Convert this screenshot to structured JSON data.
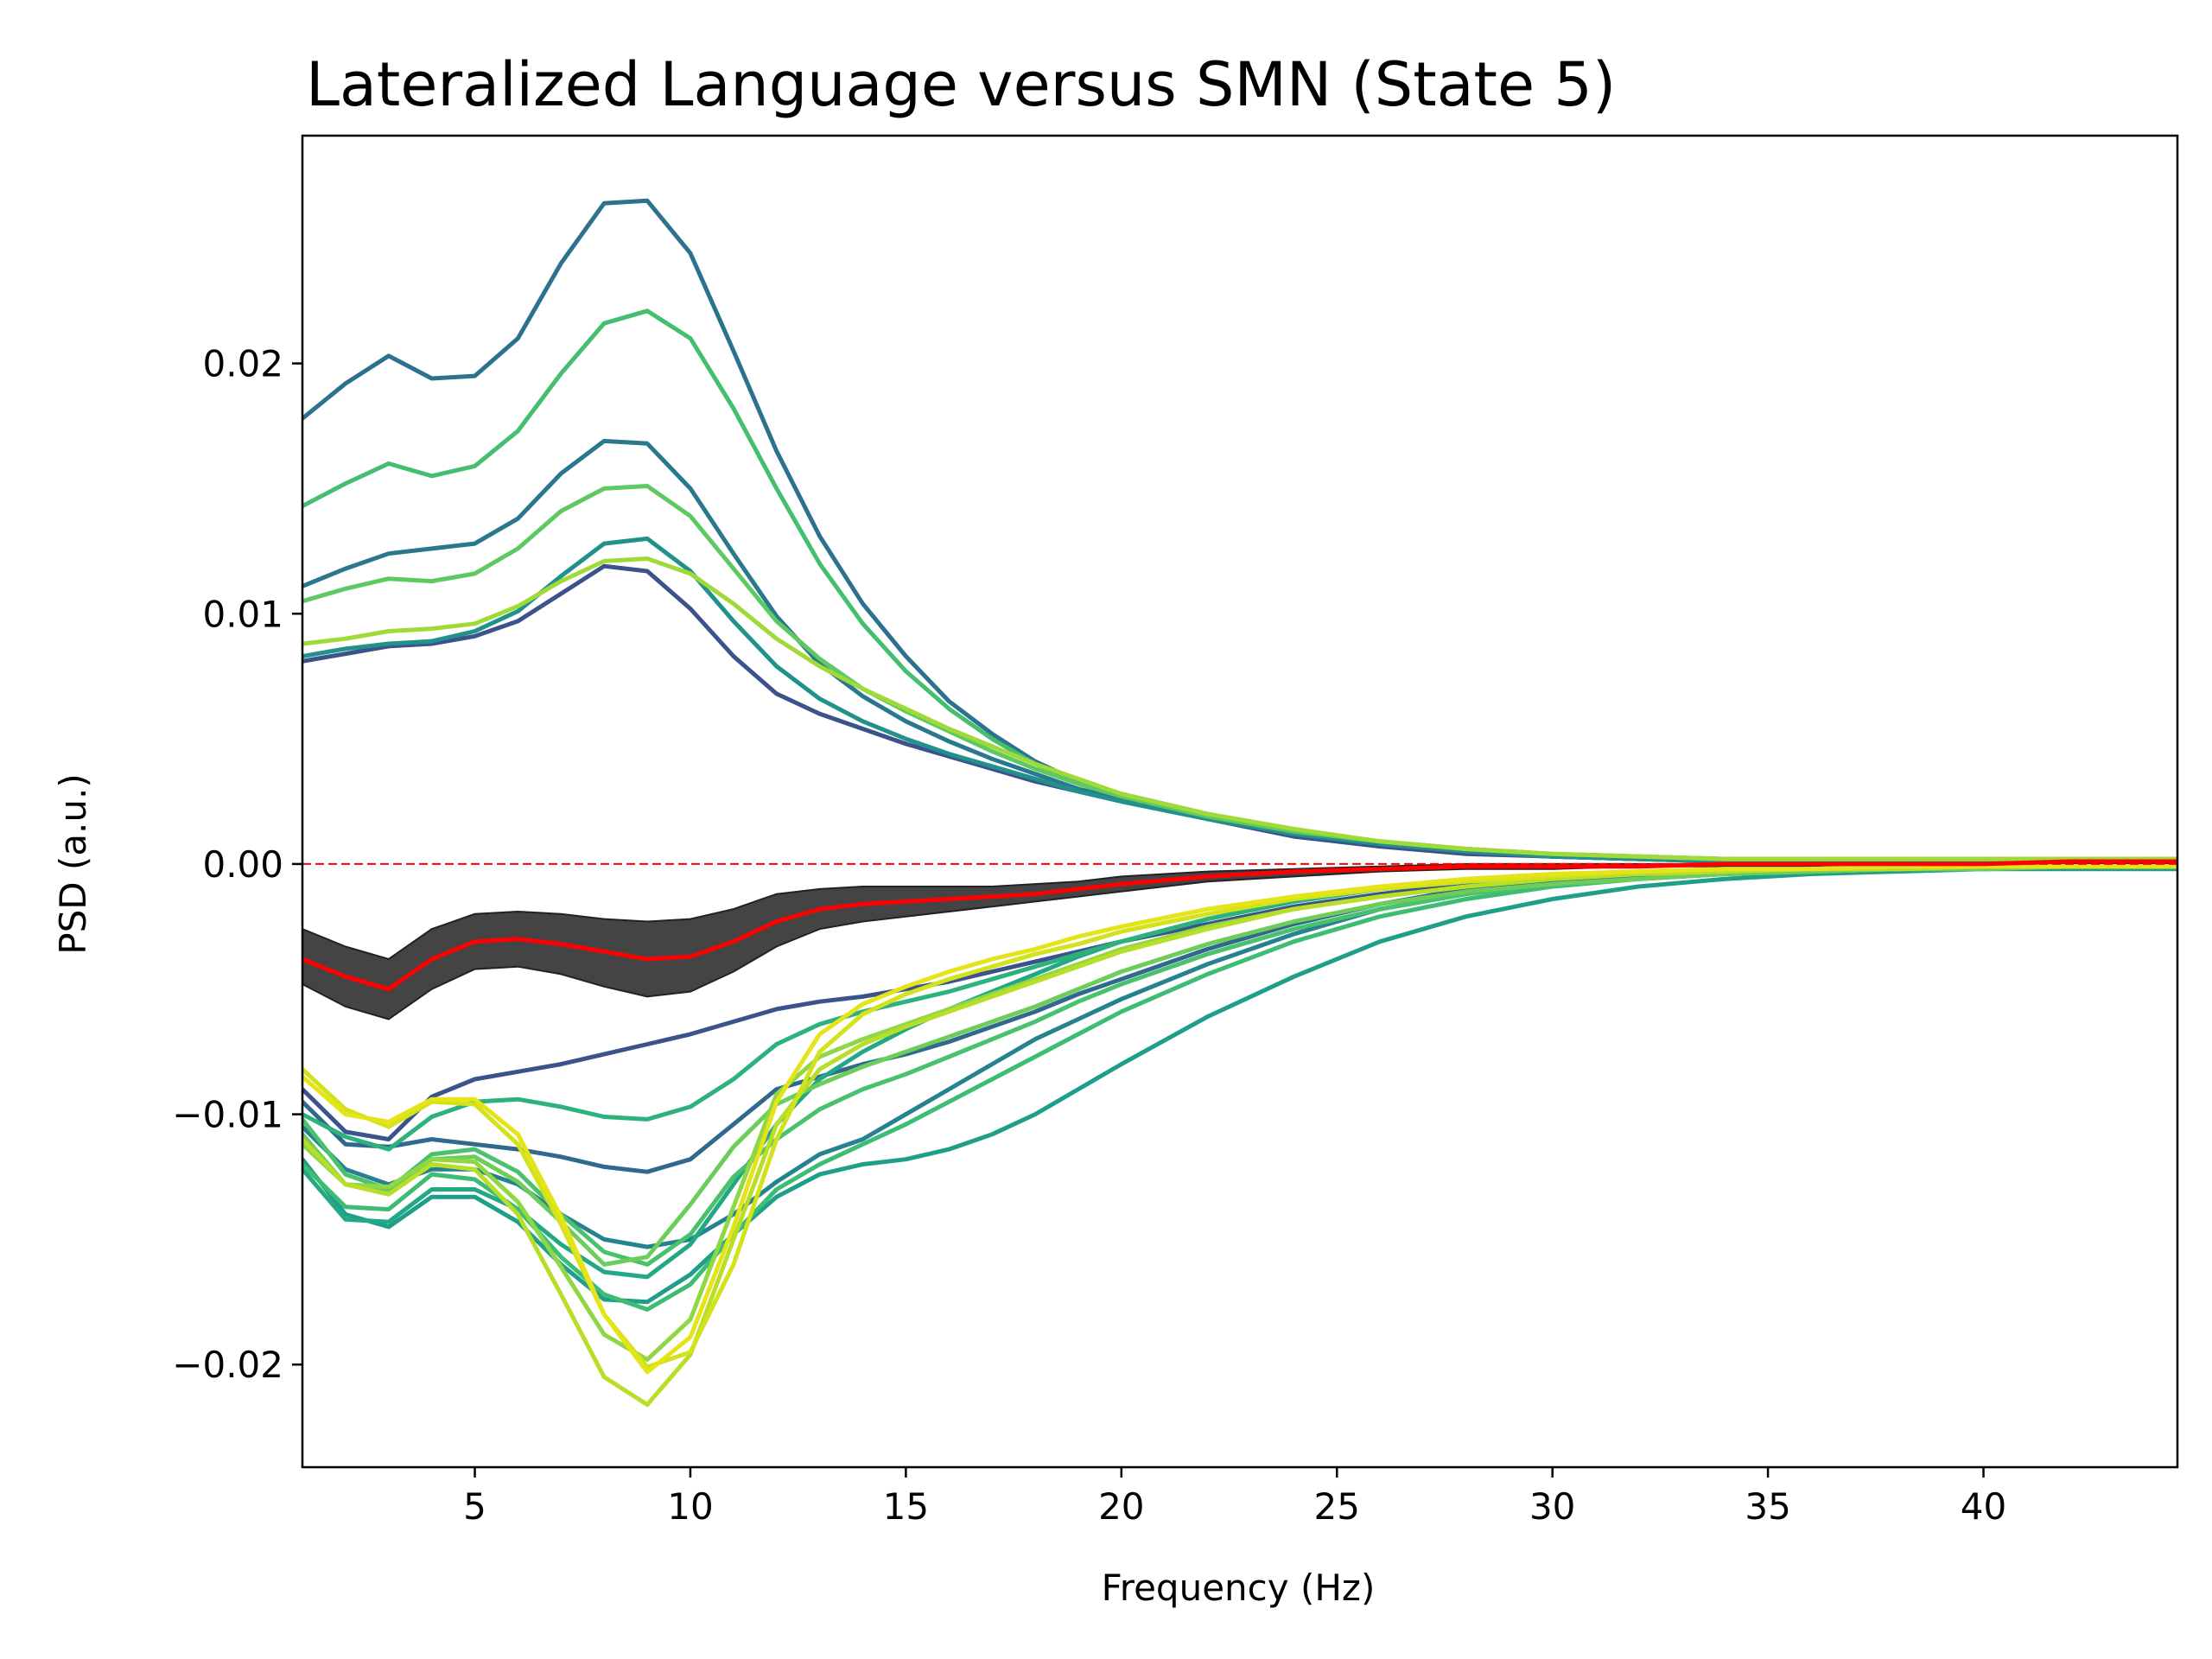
{
  "chart_data": {
    "type": "line",
    "title": "Lateralized Language versus SMN (State 5)",
    "xlabel": "Frequency (Hz)",
    "ylabel": "PSD (a.u.)",
    "xlim": [
      1,
      44.5
    ],
    "ylim": [
      -0.0241,
      0.0291
    ],
    "x_ticks": [
      5,
      10,
      15,
      20,
      25,
      30,
      35,
      40
    ],
    "x_tick_labels": [
      "5",
      "10",
      "15",
      "20",
      "25",
      "30",
      "35",
      "40"
    ],
    "y_ticks": [
      -0.02,
      -0.01,
      0.0,
      0.01,
      0.02
    ],
    "y_tick_labels": [
      "−0.02",
      "−0.01",
      "0.00",
      "0.01",
      "0.02"
    ],
    "grid": false,
    "legend": "none",
    "reference_line": {
      "y": 0,
      "color": "#ff0000",
      "style": "dashed"
    },
    "x": [
      1,
      2,
      3,
      4,
      5,
      6,
      7,
      8,
      9,
      10,
      11,
      12,
      13,
      14,
      15,
      16,
      17,
      18,
      19,
      20,
      22,
      24,
      26,
      28,
      30,
      32,
      34,
      36,
      38,
      40,
      42,
      44.5
    ],
    "series": [
      {
        "color": "#3b528b",
        "values": [
          0.0081,
          0.0084,
          0.0087,
          0.0088,
          0.0091,
          0.0097,
          0.0108,
          0.0119,
          0.0117,
          0.0102,
          0.0083,
          0.0068,
          0.006,
          0.0054,
          0.0048,
          0.0043,
          0.0038,
          0.0033,
          0.0029,
          0.0025,
          0.0018,
          0.0011,
          0.0007,
          0.0004,
          0.0003,
          0.0002,
          0.0001,
          0.0001,
          0.0001,
          0.0001,
          0.0001,
          0.0001
        ]
      },
      {
        "color": "#2c728e",
        "values": [
          0.0178,
          0.0192,
          0.0203,
          0.0194,
          0.0195,
          0.021,
          0.024,
          0.0264,
          0.0265,
          0.0244,
          0.0205,
          0.0165,
          0.0131,
          0.0104,
          0.0083,
          0.0065,
          0.0052,
          0.0041,
          0.0033,
          0.0027,
          0.0019,
          0.0013,
          0.0008,
          0.0005,
          0.0003,
          0.0002,
          0.0002,
          0.0001,
          0.0001,
          0.0001,
          0.0001,
          0.0001
        ]
      },
      {
        "color": "#2a788e",
        "values": [
          0.0111,
          0.0118,
          0.0124,
          0.0126,
          0.0128,
          0.0138,
          0.0156,
          0.0169,
          0.0168,
          0.015,
          0.0124,
          0.0099,
          0.008,
          0.0067,
          0.0057,
          0.0049,
          0.0042,
          0.0036,
          0.003,
          0.0026,
          0.0018,
          0.0012,
          0.0008,
          0.0005,
          0.0003,
          0.0002,
          0.0001,
          0.0001,
          0.0001,
          0.0001,
          0.0001,
          0.0001
        ]
      },
      {
        "color": "#21918c",
        "values": [
          0.0083,
          0.0086,
          0.0088,
          0.0089,
          0.0093,
          0.0101,
          0.0115,
          0.0128,
          0.013,
          0.0117,
          0.0097,
          0.0079,
          0.0066,
          0.0057,
          0.005,
          0.0044,
          0.0039,
          0.0034,
          0.0029,
          0.0025,
          0.0018,
          0.0012,
          0.0008,
          0.0005,
          0.0003,
          0.0002,
          0.0001,
          0.0001,
          0.0001,
          0.0001,
          0.0001,
          0.0001
        ]
      },
      {
        "color": "#44bf70",
        "values": [
          0.0143,
          0.0152,
          0.016,
          0.0155,
          0.0159,
          0.0173,
          0.0196,
          0.0216,
          0.0221,
          0.021,
          0.0182,
          0.015,
          0.012,
          0.0096,
          0.0077,
          0.0062,
          0.005,
          0.004,
          0.0033,
          0.0028,
          0.002,
          0.0013,
          0.0009,
          0.0006,
          0.0004,
          0.0003,
          0.0002,
          0.0002,
          0.0002,
          0.0002,
          0.0002,
          0.0002
        ]
      },
      {
        "color": "#5ec962",
        "values": [
          0.0105,
          0.011,
          0.0114,
          0.0113,
          0.0116,
          0.0126,
          0.0141,
          0.015,
          0.0151,
          0.0139,
          0.0118,
          0.0097,
          0.0082,
          0.007,
          0.0061,
          0.0053,
          0.0045,
          0.0038,
          0.0032,
          0.0027,
          0.0019,
          0.0013,
          0.0009,
          0.0006,
          0.0004,
          0.0003,
          0.0002,
          0.0002,
          0.0002,
          0.0002,
          0.0002,
          0.0002
        ]
      },
      {
        "color": "#a0da39",
        "values": [
          0.0088,
          0.009,
          0.0093,
          0.0094,
          0.0096,
          0.0103,
          0.0113,
          0.0121,
          0.0122,
          0.0116,
          0.0104,
          0.009,
          0.0079,
          0.007,
          0.0062,
          0.0054,
          0.0047,
          0.004,
          0.0034,
          0.0028,
          0.002,
          0.0014,
          0.0009,
          0.0006,
          0.0004,
          0.0003,
          0.0002,
          0.0002,
          0.0002,
          0.0002,
          0.0002,
          0.0002
        ]
      },
      {
        "color": "#3b528b",
        "values": [
          -0.009,
          -0.0107,
          -0.011,
          -0.0093,
          -0.0086,
          -0.0083,
          -0.008,
          -0.0076,
          -0.0072,
          -0.0068,
          -0.0063,
          -0.0058,
          -0.0055,
          -0.0053,
          -0.005,
          -0.0047,
          -0.0043,
          -0.0039,
          -0.0035,
          -0.0031,
          -0.0024,
          -0.0017,
          -0.0012,
          -0.0008,
          -0.0005,
          -0.0004,
          -0.0003,
          -0.0002,
          -0.0002,
          -0.0001,
          -0.0001,
          -0.0001
        ]
      },
      {
        "color": "#31688e",
        "values": [
          -0.0095,
          -0.0112,
          -0.0113,
          -0.011,
          -0.0112,
          -0.0114,
          -0.0117,
          -0.0121,
          -0.0123,
          -0.0118,
          -0.0104,
          -0.009,
          -0.0085,
          -0.008,
          -0.0076,
          -0.0071,
          -0.0065,
          -0.0059,
          -0.0052,
          -0.0046,
          -0.0034,
          -0.0024,
          -0.0016,
          -0.001,
          -0.0007,
          -0.0005,
          -0.0003,
          -0.0002,
          -0.0002,
          -0.0001,
          -0.0001,
          -0.0001
        ]
      },
      {
        "color": "#26828e",
        "values": [
          -0.0105,
          -0.0122,
          -0.0128,
          -0.0122,
          -0.0122,
          -0.0128,
          -0.014,
          -0.015,
          -0.0153,
          -0.015,
          -0.014,
          -0.0127,
          -0.0116,
          -0.011,
          -0.01,
          -0.009,
          -0.008,
          -0.007,
          -0.0062,
          -0.0054,
          -0.004,
          -0.0028,
          -0.0018,
          -0.0012,
          -0.0008,
          -0.0005,
          -0.0004,
          -0.0003,
          -0.0002,
          -0.0002,
          -0.0001,
          -0.0001
        ]
      },
      {
        "color": "#1f9e89",
        "values": [
          -0.0118,
          -0.014,
          -0.0145,
          -0.0133,
          -0.0133,
          -0.0143,
          -0.016,
          -0.0174,
          -0.0175,
          -0.0164,
          -0.0148,
          -0.0133,
          -0.0124,
          -0.012,
          -0.0118,
          -0.0114,
          -0.0108,
          -0.01,
          -0.009,
          -0.008,
          -0.0061,
          -0.0045,
          -0.0031,
          -0.0021,
          -0.0014,
          -0.0009,
          -0.0006,
          -0.0004,
          -0.0003,
          -0.0002,
          -0.0002,
          -0.0002
        ]
      },
      {
        "color": "#22a884",
        "values": [
          -0.0122,
          -0.0142,
          -0.0143,
          -0.013,
          -0.013,
          -0.0138,
          -0.0152,
          -0.0163,
          -0.0165,
          -0.0152,
          -0.0128,
          -0.0104,
          -0.0086,
          -0.0075,
          -0.0066,
          -0.0058,
          -0.0051,
          -0.0044,
          -0.0037,
          -0.0031,
          -0.0022,
          -0.0015,
          -0.001,
          -0.0007,
          -0.0005,
          -0.0004,
          -0.0003,
          -0.0002,
          -0.0002,
          -0.0001,
          -0.0001,
          -0.0001
        ]
      },
      {
        "color": "#2db27d",
        "values": [
          -0.01,
          -0.0109,
          -0.0114,
          -0.0101,
          -0.0095,
          -0.0094,
          -0.0097,
          -0.0101,
          -0.0102,
          -0.0097,
          -0.0086,
          -0.0072,
          -0.0064,
          -0.0059,
          -0.0055,
          -0.0051,
          -0.0046,
          -0.0041,
          -0.0036,
          -0.0031,
          -0.0022,
          -0.0015,
          -0.001,
          -0.0007,
          -0.0005,
          -0.0004,
          -0.0003,
          -0.0002,
          -0.0002,
          -0.0001,
          -0.0001,
          -0.0001
        ]
      },
      {
        "color": "#3dbc74",
        "values": [
          -0.012,
          -0.0137,
          -0.0138,
          -0.0124,
          -0.0126,
          -0.0138,
          -0.0157,
          -0.0172,
          -0.0178,
          -0.0168,
          -0.0148,
          -0.013,
          -0.012,
          -0.0112,
          -0.0104,
          -0.0095,
          -0.0086,
          -0.0077,
          -0.0068,
          -0.0059,
          -0.0044,
          -0.0031,
          -0.0021,
          -0.0014,
          -0.0009,
          -0.0006,
          -0.0004,
          -0.0003,
          -0.0002,
          -0.0002,
          -0.0001,
          -0.0001
        ]
      },
      {
        "color": "#4ac16d",
        "values": [
          -0.0102,
          -0.0124,
          -0.013,
          -0.0116,
          -0.0114,
          -0.0123,
          -0.014,
          -0.0155,
          -0.016,
          -0.0148,
          -0.0125,
          -0.011,
          -0.0098,
          -0.009,
          -0.0084,
          -0.0077,
          -0.007,
          -0.0063,
          -0.0055,
          -0.0048,
          -0.0036,
          -0.0026,
          -0.0018,
          -0.0012,
          -0.0008,
          -0.0006,
          -0.0004,
          -0.0003,
          -0.0002,
          -0.0002,
          -0.0001,
          -0.0001
        ]
      },
      {
        "color": "#6ccd5a",
        "values": [
          -0.0108,
          -0.0128,
          -0.0131,
          -0.0118,
          -0.0117,
          -0.0127,
          -0.0143,
          -0.016,
          -0.0157,
          -0.0136,
          -0.0113,
          -0.0096,
          -0.0088,
          -0.0081,
          -0.0075,
          -0.0069,
          -0.0063,
          -0.0057,
          -0.005,
          -0.0043,
          -0.0032,
          -0.0023,
          -0.0016,
          -0.0011,
          -0.0008,
          -0.0006,
          -0.0004,
          -0.0003,
          -0.0002,
          -0.0002,
          -0.0001,
          -0.0001
        ]
      },
      {
        "color": "#8fd744",
        "values": [
          -0.0112,
          -0.0128,
          -0.0129,
          -0.0118,
          -0.0119,
          -0.0135,
          -0.0161,
          -0.0188,
          -0.0198,
          -0.0182,
          -0.0137,
          -0.0092,
          -0.0077,
          -0.007,
          -0.0064,
          -0.0058,
          -0.0052,
          -0.0046,
          -0.004,
          -0.0034,
          -0.0025,
          -0.0018,
          -0.0013,
          -0.0009,
          -0.0006,
          -0.0004,
          -0.0003,
          -0.0002,
          -0.0002,
          -0.0001,
          -0.0001,
          -0.0001
        ]
      },
      {
        "color": "#b8de29",
        "values": [
          -0.011,
          -0.0128,
          -0.0132,
          -0.012,
          -0.0122,
          -0.014,
          -0.0172,
          -0.0205,
          -0.0216,
          -0.0196,
          -0.015,
          -0.0104,
          -0.0082,
          -0.0072,
          -0.0065,
          -0.0059,
          -0.0053,
          -0.0047,
          -0.0041,
          -0.0035,
          -0.0026,
          -0.0018,
          -0.0013,
          -0.0009,
          -0.0006,
          -0.0004,
          -0.0003,
          -0.0002,
          -0.0002,
          -0.0001,
          -0.0001,
          -0.0001
        ]
      },
      {
        "color": "#d2e21b",
        "values": [
          -0.0082,
          -0.0098,
          -0.0105,
          -0.0095,
          -0.0096,
          -0.0112,
          -0.0144,
          -0.018,
          -0.0201,
          -0.0195,
          -0.016,
          -0.011,
          -0.0075,
          -0.006,
          -0.0052,
          -0.0046,
          -0.0041,
          -0.0036,
          -0.0032,
          -0.0027,
          -0.002,
          -0.0014,
          -0.001,
          -0.0007,
          -0.0005,
          -0.0003,
          -0.0002,
          -0.0002,
          -0.0001,
          -0.0001,
          -0.0001,
          -0.0001
        ]
      },
      {
        "color": "#e5e419",
        "values": [
          -0.0085,
          -0.01,
          -0.0103,
          -0.0094,
          -0.0094,
          -0.0108,
          -0.0141,
          -0.018,
          -0.0203,
          -0.0189,
          -0.0145,
          -0.0095,
          -0.0068,
          -0.0056,
          -0.0049,
          -0.0043,
          -0.0038,
          -0.0034,
          -0.0029,
          -0.0025,
          -0.0018,
          -0.0013,
          -0.0009,
          -0.0006,
          -0.0004,
          -0.0003,
          -0.0002,
          -0.0002,
          -0.0001,
          -0.0001,
          -0.0001,
          -0.0001
        ]
      }
    ],
    "mean_series": {
      "color": "#ff0000",
      "values": [
        -0.0038,
        -0.0045,
        -0.005,
        -0.0038,
        -0.0031,
        -0.003,
        -0.0032,
        -0.0035,
        -0.0038,
        -0.0037,
        -0.0031,
        -0.0023,
        -0.0018,
        -0.0016,
        -0.0015,
        -0.0014,
        -0.0013,
        -0.0012,
        -0.001,
        -0.0008,
        -0.0005,
        -0.0003,
        -0.0002,
        -0.0001,
        -0.0001,
        -0.0001,
        0.0,
        0.0,
        0.0,
        0.0,
        0.0001,
        0.0001
      ],
      "band_color": "#3a3a3a",
      "band_low": [
        -0.0048,
        -0.0057,
        -0.0062,
        -0.005,
        -0.0042,
        -0.0041,
        -0.0044,
        -0.0049,
        -0.0053,
        -0.0051,
        -0.0043,
        -0.0033,
        -0.0026,
        -0.0023,
        -0.0021,
        -0.0019,
        -0.0017,
        -0.0015,
        -0.0013,
        -0.0011,
        -0.0007,
        -0.0005,
        -0.0003,
        -0.0002,
        -0.0002,
        -0.0001,
        -0.0001,
        -0.0001,
        0.0,
        0.0,
        0.0,
        0.0
      ],
      "band_high": [
        -0.0026,
        -0.0033,
        -0.0038,
        -0.0026,
        -0.002,
        -0.0019,
        -0.002,
        -0.0022,
        -0.0023,
        -0.0022,
        -0.0018,
        -0.0012,
        -0.001,
        -0.0009,
        -0.0009,
        -0.0009,
        -0.0009,
        -0.0008,
        -0.0007,
        -0.0005,
        -0.0003,
        -0.0002,
        -0.0001,
        0.0,
        0.0,
        0.0,
        0.0,
        0.0001,
        0.0001,
        0.0001,
        0.0001,
        0.0001
      ]
    }
  }
}
